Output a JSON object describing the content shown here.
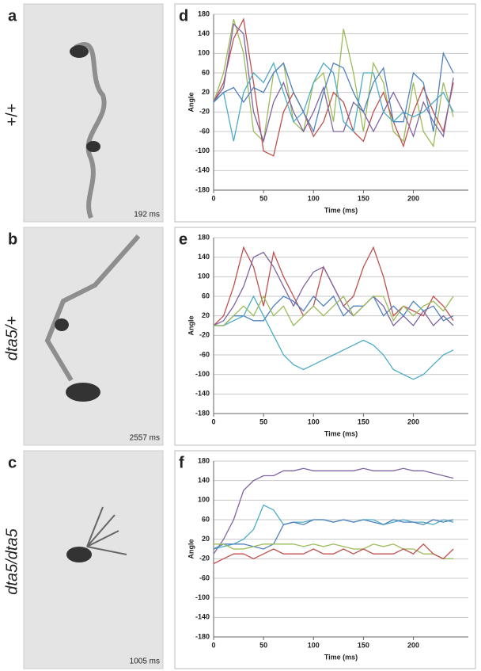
{
  "panels": [
    {
      "letter": "a",
      "genotype": "+/+",
      "genotype_italic": false,
      "time": "192 ms"
    },
    {
      "letter": "b",
      "genotype": "dta5/+",
      "genotype_italic": true,
      "time": "2557 ms"
    },
    {
      "letter": "c",
      "genotype": "dta5/dta5",
      "genotype_italic": true,
      "time": "1005 ms"
    }
  ],
  "chart_data": [
    {
      "type": "line",
      "panel_label": "d",
      "y_label": "Angle",
      "x_label": "Time (ms)",
      "x": [
        0,
        10,
        20,
        30,
        40,
        50,
        60,
        70,
        80,
        90,
        100,
        110,
        120,
        130,
        140,
        150,
        160,
        170,
        180,
        190,
        200,
        210,
        220,
        230,
        240
      ],
      "series": [
        {
          "color": "#9bbb59",
          "values": [
            0,
            60,
            170,
            100,
            -60,
            -80,
            60,
            80,
            -40,
            -60,
            40,
            60,
            -40,
            150,
            60,
            -60,
            80,
            40,
            -60,
            -80,
            40,
            -60,
            -90,
            40,
            -30
          ]
        },
        {
          "color": "#c0504d",
          "values": [
            0,
            40,
            130,
            170,
            40,
            -100,
            -110,
            -20,
            20,
            -20,
            -70,
            -40,
            20,
            0,
            -60,
            -80,
            -20,
            20,
            -40,
            -90,
            -20,
            30,
            -20,
            -60,
            40
          ]
        },
        {
          "color": "#8064a2",
          "values": [
            0,
            30,
            160,
            140,
            -20,
            -80,
            0,
            40,
            -20,
            -60,
            -20,
            30,
            -60,
            -60,
            0,
            -20,
            -60,
            -20,
            20,
            -20,
            -70,
            0,
            -40,
            -70,
            50
          ]
        },
        {
          "color": "#4bacc6",
          "values": [
            0,
            20,
            -80,
            20,
            60,
            40,
            80,
            20,
            -40,
            -20,
            40,
            80,
            60,
            -40,
            -60,
            60,
            60,
            -20,
            -40,
            -20,
            -30,
            -20,
            0,
            20,
            -20
          ]
        },
        {
          "color": "#4f81bd",
          "values": [
            0,
            20,
            30,
            0,
            30,
            20,
            60,
            80,
            20,
            -20,
            -60,
            20,
            80,
            70,
            20,
            -20,
            40,
            70,
            -40,
            -40,
            60,
            40,
            -60,
            100,
            60
          ]
        }
      ],
      "xlim": [
        0,
        255
      ],
      "ylim": [
        -180,
        180
      ],
      "xticks": [
        0,
        50,
        100,
        150,
        200
      ],
      "yticks": [
        -180,
        -140,
        -100,
        -60,
        -20,
        20,
        60,
        100,
        140,
        180
      ],
      "grid": true
    },
    {
      "type": "line",
      "panel_label": "e",
      "y_label": "Angle",
      "x_label": "Time (ms)",
      "x": [
        0,
        10,
        20,
        30,
        40,
        50,
        60,
        70,
        80,
        90,
        100,
        110,
        120,
        130,
        140,
        150,
        160,
        170,
        180,
        190,
        200,
        210,
        220,
        230,
        240
      ],
      "series": [
        {
          "color": "#c0504d",
          "values": [
            0,
            20,
            80,
            160,
            120,
            40,
            150,
            100,
            60,
            20,
            40,
            120,
            80,
            40,
            60,
            120,
            160,
            100,
            20,
            40,
            30,
            20,
            60,
            40,
            10
          ]
        },
        {
          "color": "#8064a2",
          "values": [
            0,
            10,
            40,
            80,
            140,
            150,
            120,
            80,
            40,
            80,
            110,
            120,
            80,
            40,
            20,
            40,
            60,
            40,
            0,
            20,
            0,
            30,
            0,
            20,
            0
          ]
        },
        {
          "color": "#4f81bd",
          "values": [
            0,
            0,
            20,
            20,
            10,
            10,
            40,
            60,
            50,
            30,
            60,
            40,
            60,
            20,
            40,
            40,
            60,
            20,
            40,
            20,
            50,
            30,
            40,
            10,
            20
          ]
        },
        {
          "color": "#4bacc6",
          "values": [
            0,
            0,
            10,
            20,
            60,
            20,
            -20,
            -60,
            -80,
            -90,
            -80,
            -70,
            -60,
            -50,
            -40,
            -30,
            -40,
            -60,
            -90,
            -100,
            -110,
            -100,
            -80,
            -60,
            -50
          ]
        },
        {
          "color": "#9bbb59",
          "values": [
            0,
            0,
            20,
            40,
            20,
            60,
            20,
            40,
            0,
            20,
            40,
            20,
            40,
            60,
            20,
            40,
            60,
            60,
            10,
            40,
            20,
            40,
            50,
            30,
            60
          ]
        }
      ],
      "xlim": [
        0,
        255
      ],
      "ylim": [
        -180,
        180
      ],
      "xticks": [
        0,
        50,
        100,
        150,
        200
      ],
      "yticks": [
        -180,
        -140,
        -100,
        -60,
        -20,
        20,
        60,
        100,
        140,
        180
      ],
      "grid": true
    },
    {
      "type": "line",
      "panel_label": "f",
      "y_label": "Angle",
      "x_label": "Time (ms)",
      "x": [
        0,
        10,
        20,
        30,
        40,
        50,
        60,
        70,
        80,
        90,
        100,
        110,
        120,
        130,
        140,
        150,
        160,
        170,
        180,
        190,
        200,
        210,
        220,
        230,
        240
      ],
      "series": [
        {
          "color": "#8064a2",
          "values": [
            -10,
            20,
            60,
            120,
            140,
            150,
            150,
            160,
            160,
            165,
            160,
            160,
            160,
            160,
            160,
            165,
            160,
            160,
            160,
            165,
            160,
            160,
            155,
            150,
            145
          ]
        },
        {
          "color": "#4bacc6",
          "values": [
            0,
            5,
            10,
            20,
            40,
            90,
            80,
            50,
            55,
            55,
            60,
            60,
            55,
            60,
            55,
            60,
            60,
            50,
            55,
            60,
            55,
            55,
            50,
            60,
            55
          ]
        },
        {
          "color": "#4f81bd",
          "values": [
            0,
            10,
            10,
            10,
            5,
            0,
            10,
            50,
            55,
            50,
            60,
            60,
            55,
            60,
            55,
            60,
            55,
            50,
            60,
            55,
            55,
            50,
            60,
            55,
            60
          ]
        },
        {
          "color": "#9bbb59",
          "values": [
            10,
            10,
            0,
            0,
            5,
            10,
            10,
            10,
            10,
            5,
            10,
            5,
            10,
            5,
            0,
            0,
            10,
            5,
            10,
            0,
            0,
            -10,
            -10,
            -20,
            -20
          ]
        },
        {
          "color": "#c0504d",
          "values": [
            -30,
            -20,
            -10,
            -10,
            -20,
            -10,
            0,
            -10,
            -10,
            -10,
            0,
            -10,
            -10,
            0,
            -10,
            0,
            -10,
            -10,
            -10,
            0,
            -10,
            10,
            -10,
            -20,
            0
          ]
        }
      ],
      "xlim": [
        0,
        255
      ],
      "ylim": [
        -180,
        180
      ],
      "xticks": [
        0,
        50,
        100,
        150,
        200
      ],
      "yticks": [
        -180,
        -140,
        -100,
        -60,
        -20,
        20,
        60,
        100,
        140,
        180
      ],
      "grid": true
    }
  ]
}
